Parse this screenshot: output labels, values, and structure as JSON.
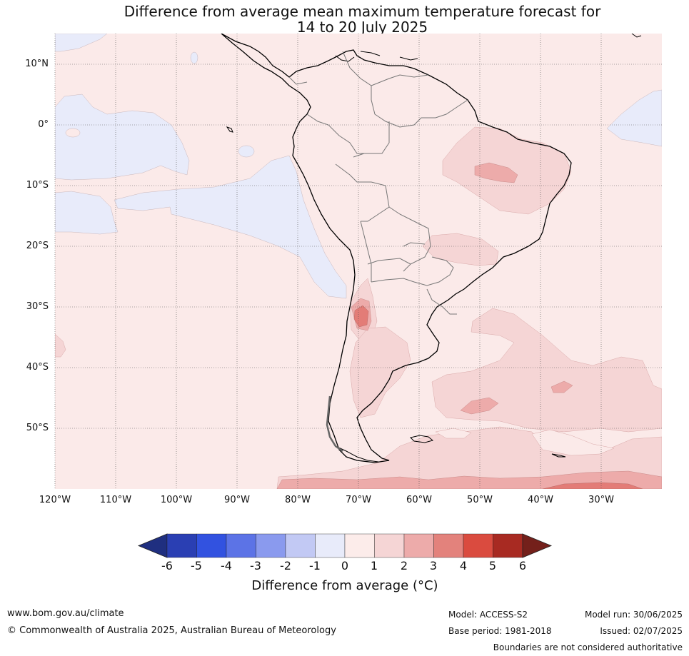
{
  "title_line1": "Difference from average mean maximum temperature forecast for",
  "title_line2": "14 to 20 July 2025",
  "map": {
    "lat_labels": [
      "10°N",
      "0°",
      "10°S",
      "20°S",
      "30°S",
      "40°S",
      "50°S"
    ],
    "lon_labels": [
      "120°W",
      "110°W",
      "100°W",
      "90°W",
      "80°W",
      "70°W",
      "60°W",
      "50°W",
      "40°W",
      "30°W"
    ],
    "colors": {
      "ocean_default": "#fbeae9",
      "cool_minus1_0": "#e8ebfa",
      "warm_1_2": "#f5d5d5",
      "warm_2_3": "#edabaa",
      "warm_3_4": "#e37c77",
      "coastline": "#000000",
      "borders": "#777777"
    }
  },
  "colorbar": {
    "tick_labels": [
      "-6",
      "-5",
      "-4",
      "-3",
      "-2",
      "-1",
      "0",
      "1",
      "2",
      "3",
      "4",
      "5",
      "6"
    ],
    "colors": [
      "#1f2f80",
      "#2a3fb3",
      "#3252e0",
      "#5c73e6",
      "#8a9aee",
      "#c2c9f4",
      "#e8ebfa",
      "#fcecea",
      "#f5d5d5",
      "#edabaa",
      "#e3827c",
      "#da4b3f",
      "#a82a22",
      "#74201b"
    ],
    "label": "Difference from average (°C)"
  },
  "footer": {
    "website": "www.bom.gov.au/climate",
    "copyright": "© Commonwealth of Australia 2025, Australian Bureau of Meteorology",
    "model": "Model: ACCESS-S2",
    "base_period": "Base period: 1981-2018",
    "model_run": "Model run: 30/06/2025",
    "issued": "Issued: 02/07/2025",
    "disclaimer": "Boundaries are not considered authoritative"
  }
}
